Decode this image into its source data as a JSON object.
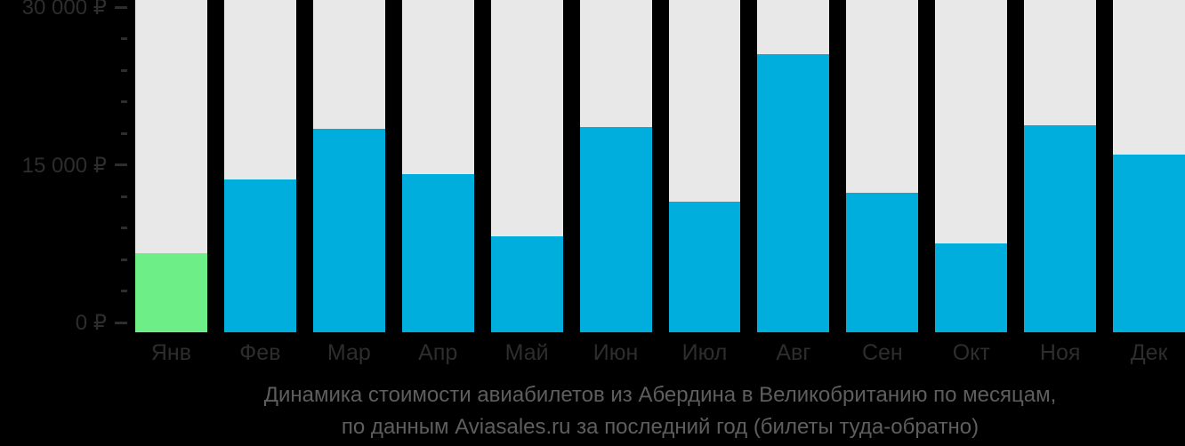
{
  "chart_data": {
    "type": "bar",
    "title_line1": "Динамика стоимости авиабилетов из Абердина в Великобританию по месяцам,",
    "title_line2": "по данным Aviasales.ru за последний год (билеты туда-обратно)",
    "categories": [
      "Янв",
      "Фев",
      "Мар",
      "Апр",
      "Май",
      "Июн",
      "Июл",
      "Авг",
      "Сен",
      "Окт",
      "Ноя",
      "Дек"
    ],
    "values": [
      6600,
      13600,
      18400,
      14100,
      8200,
      18600,
      11500,
      25500,
      12300,
      7500,
      18800,
      16000
    ],
    "highlight_index": 0,
    "ylabel": "",
    "xlabel": "",
    "ylim": [
      0,
      30000
    ],
    "major_ticks": [
      {
        "value": 0,
        "label": "0 ₽"
      },
      {
        "value": 15000,
        "label": "15 000 ₽"
      },
      {
        "value": 30000,
        "label": "30 000 ₽"
      }
    ],
    "minor_tick_step": 3000,
    "grid": "off",
    "legend": "none",
    "colors": {
      "background": "#000000",
      "column_track": "#e8e8e8",
      "bar": "#00aedd",
      "bar_highlight": "#6dee87",
      "axis_text": "#2d2d2d",
      "title_text": "#5e5e5e"
    }
  }
}
